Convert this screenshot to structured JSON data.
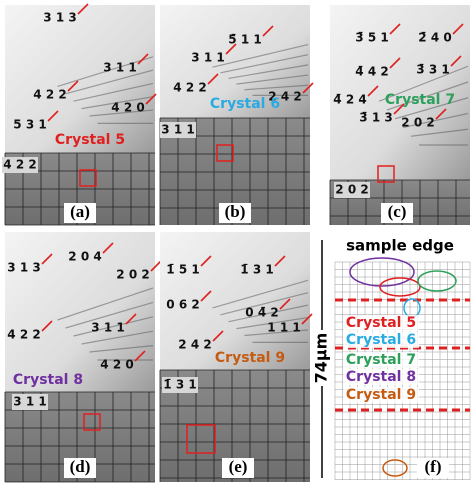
{
  "panels": [
    {
      "labels": [
        "3 1 3",
        "3 1 1",
        "4 2 2",
        "4 2 0",
        "5 3 1"
      ],
      "crystal": "Crystal 5",
      "grid_label": "4 2 2",
      "tag": "(a)"
    },
    {
      "labels": [
        "5̄ 1 1",
        "3 1 1",
        "4 2 2",
        "2 4 2"
      ],
      "crystal": "Crystal 6",
      "grid_label": "3 1 1",
      "tag": "(b)"
    },
    {
      "labels": [
        "3̄ 5 1",
        "2̄ 4 0",
        "4̄ 4 2",
        "3̄ 3 1",
        "4̄ 2 4",
        "3̄ 1 3",
        "2 0 2"
      ],
      "crystal": "Crystal 7",
      "grid_label": "2 0 2",
      "tag": "(c)"
    },
    {
      "labels": [
        "3 1 3",
        "2 0 4",
        "2 0 2",
        "4 2 2",
        "3 1 1",
        "4 2 0"
      ],
      "crystal": "Crystal 8",
      "grid_label": "3 1 1",
      "tag": "(d)"
    },
    {
      "labels": [
        "1̄ 5 1",
        "1̄ 3 1",
        "0 6 2",
        "0 4̄ 2",
        "2 4 2",
        "1 1 1"
      ],
      "crystal": "Crystal 9",
      "grid_label": "1̄ 3 1",
      "tag": "(e)"
    }
  ],
  "map": {
    "title": "sample edge",
    "crystals": [
      "Crystal 5",
      "Crystal 6",
      "Crystal 7",
      "Crystal 8",
      "Crystal 9"
    ],
    "scale": "74μm",
    "tag": "(f)"
  }
}
